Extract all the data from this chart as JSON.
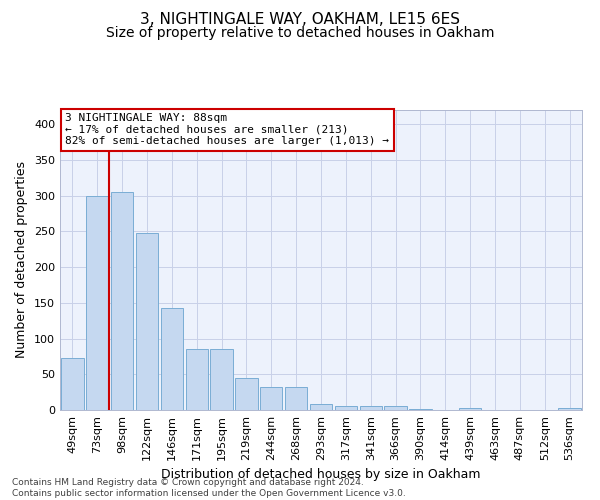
{
  "title": "3, NIGHTINGALE WAY, OAKHAM, LE15 6ES",
  "subtitle": "Size of property relative to detached houses in Oakham",
  "xlabel": "Distribution of detached houses by size in Oakham",
  "ylabel": "Number of detached properties",
  "categories": [
    "49sqm",
    "73sqm",
    "98sqm",
    "122sqm",
    "146sqm",
    "171sqm",
    "195sqm",
    "219sqm",
    "244sqm",
    "268sqm",
    "293sqm",
    "317sqm",
    "341sqm",
    "366sqm",
    "390sqm",
    "414sqm",
    "439sqm",
    "463sqm",
    "487sqm",
    "512sqm",
    "536sqm"
  ],
  "values": [
    73,
    300,
    305,
    248,
    143,
    85,
    85,
    45,
    32,
    32,
    9,
    6,
    5,
    6,
    1,
    0,
    3,
    0,
    0,
    0,
    3
  ],
  "bar_color": "#c5d8f0",
  "bar_edge_color": "#7aadd4",
  "red_line_x": 1.48,
  "annotation_text": "3 NIGHTINGALE WAY: 88sqm\n← 17% of detached houses are smaller (213)\n82% of semi-detached houses are larger (1,013) →",
  "annotation_box_color": "#ffffff",
  "annotation_box_edge": "#cc0000",
  "footer_text": "Contains HM Land Registry data © Crown copyright and database right 2024.\nContains public sector information licensed under the Open Government Licence v3.0.",
  "ylim": [
    0,
    420
  ],
  "yticks": [
    0,
    50,
    100,
    150,
    200,
    250,
    300,
    350,
    400
  ],
  "grid_color": "#c8d0e8",
  "background_color": "#edf2fc",
  "title_fontsize": 11,
  "subtitle_fontsize": 10,
  "tick_fontsize": 8,
  "ylabel_fontsize": 9,
  "xlabel_fontsize": 9,
  "annotation_fontsize": 8,
  "footer_fontsize": 6.5
}
